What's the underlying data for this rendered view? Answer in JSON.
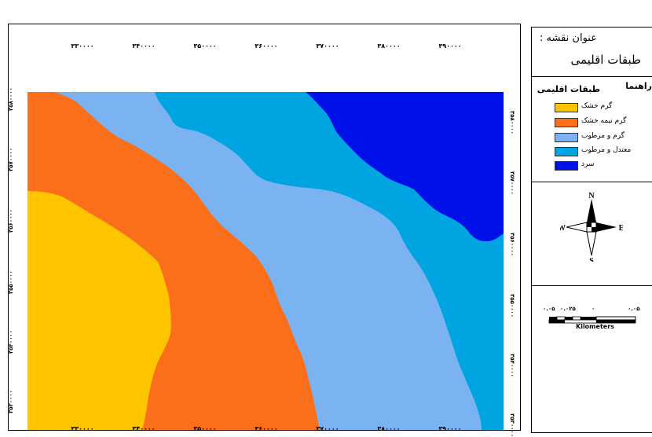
{
  "map": {
    "x_ticks": [
      "۳۳۰۰۰۰",
      "۳۴۰۰۰۰",
      "۳۵۰۰۰۰",
      "۳۶۰۰۰۰",
      "۳۷۰۰۰۰",
      "۳۸۰۰۰۰",
      "۳۹۰۰۰۰"
    ],
    "y_ticks": [
      "۳۵۸۰۰۰۰",
      "۳۵۷۰۰۰۰",
      "۳۵۶۰۰۰۰",
      "۳۵۵۰۰۰۰",
      "۳۵۴۰۰۰۰",
      "۳۵۳۰۰۰۰"
    ]
  },
  "zones": [
    {
      "label": "گرم خشک",
      "color": "#FFC400"
    },
    {
      "label": "گرم نیمه خشک",
      "color": "#FB6E1A"
    },
    {
      "label": "گرم و مرطوب",
      "color": "#7BB2F2"
    },
    {
      "label": "معتدل و مرطوب",
      "color": "#00A4E0"
    },
    {
      "label": "سرد",
      "color": "#0010E8"
    }
  ],
  "panel": {
    "title_label": "عنوان نقشه :",
    "title": "طبقات اقلیمی",
    "legend_label": "راهنما",
    "legend_title": "طبقات اقلیمی"
  },
  "compass": {
    "n": "N",
    "s": "S",
    "e": "E",
    "w": "W",
    "icon": "north-arrow-icon"
  },
  "scale": {
    "labels": [
      "۰.۰۵",
      "۰.۰۲۵",
      "۰",
      "۰.۰۵"
    ],
    "unit": "Kilometers"
  }
}
